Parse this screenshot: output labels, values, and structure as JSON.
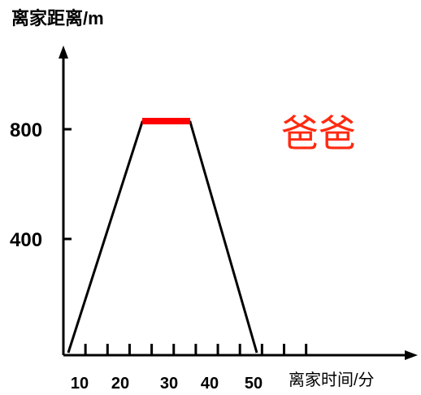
{
  "chart_data": {
    "type": "line",
    "ylabel": "离家距离/m",
    "xlabel": "离家时间/分",
    "x_ticks": [
      "10",
      "20",
      "30",
      "40",
      "50"
    ],
    "y_ticks": [
      "400",
      "800"
    ],
    "xlim": [
      0,
      60
    ],
    "ylim": [
      0,
      1050
    ],
    "series": [
      {
        "points": [
          [
            0,
            0
          ],
          [
            17,
            830
          ],
          [
            28,
            830
          ],
          [
            43,
            0
          ]
        ],
        "color": "#000000"
      },
      {
        "points": [
          [
            17,
            830
          ],
          [
            28,
            830
          ]
        ],
        "color": "#ff0000"
      }
    ],
    "annotation": "爸爸",
    "annotation_color": "#ff2a10",
    "grid": false
  }
}
